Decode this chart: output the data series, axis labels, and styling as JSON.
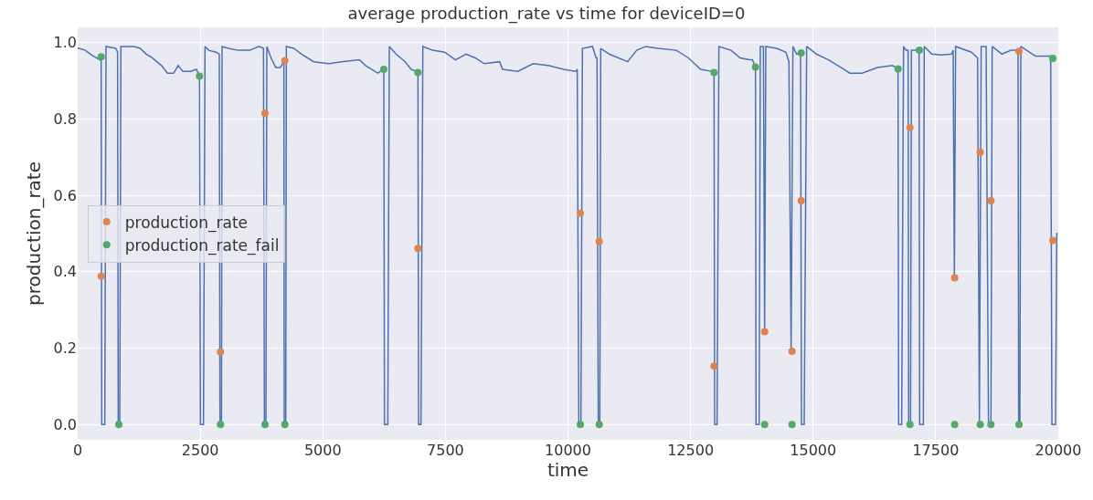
{
  "chart_data": {
    "type": "line",
    "title": "average production_rate vs time for deviceID=0",
    "xlabel": "time",
    "ylabel": "production_rate",
    "xlim": [
      0,
      20000
    ],
    "xticks": [
      0,
      2500,
      5000,
      7500,
      10000,
      12500,
      15000,
      17500,
      20000
    ],
    "ylim": [
      -0.04,
      1.04
    ],
    "yticks": [
      {
        "value": 0,
        "label": "0.0"
      },
      {
        "value": 0.2,
        "label": "0.2"
      },
      {
        "value": 0.4,
        "label": "0.4"
      },
      {
        "value": 0.6,
        "label": "0.6"
      },
      {
        "value": 0.8,
        "label": "0.8"
      },
      {
        "value": 1,
        "label": "1.0"
      }
    ],
    "grid": true,
    "legend": "left",
    "series": [
      {
        "color": "#4c72b0",
        "marker": "none",
        "x": [
          0,
          31,
          156,
          280,
          454,
          479,
          491,
          553,
          578,
          777,
          814,
          827,
          858,
          882,
          994,
          1150,
          1274,
          1398,
          1522,
          1709,
          1833,
          1957,
          2050,
          2144,
          2299,
          2423,
          2485,
          2504,
          2566,
          2597,
          2672,
          2827,
          2889,
          2902,
          2933,
          2945,
          3076,
          3262,
          3510,
          3697,
          3790,
          3809,
          3840,
          3858,
          3945,
          4039,
          4132,
          4206,
          4213,
          4244,
          4256,
          4411,
          4567,
          4815,
          5126,
          5375,
          5747,
          5872,
          6120,
          6232,
          6244,
          6257,
          6325,
          6356,
          6493,
          6679,
          6803,
          6897,
          6940,
          6953,
          7002,
          7040,
          7238,
          7487,
          7704,
          7922,
          8108,
          8294,
          8605,
          8667,
          8978,
          9289,
          9599,
          9910,
          10158,
          10189,
          10221,
          10264,
          10295,
          10500,
          10575,
          10593,
          10618,
          10649,
          10668,
          10842,
          11215,
          11401,
          11587,
          11836,
          12209,
          12457,
          12706,
          12923,
          12979,
          12992,
          13041,
          13078,
          13327,
          13513,
          13700,
          13762,
          13824,
          13836,
          13899,
          13923,
          13986,
          14011,
          14035,
          14259,
          14445,
          14507,
          14551,
          14588,
          14663,
          14744,
          14762,
          14818,
          14868,
          15067,
          15315,
          15564,
          15750,
          15999,
          16309,
          16620,
          16732,
          16744,
          16806,
          16844,
          16894,
          16937,
          16949,
          16987,
          17005,
          17111,
          17161,
          17173,
          17248,
          17266,
          17422,
          17608,
          17825,
          17856,
          17881,
          17906,
          18229,
          18354,
          18391,
          18428,
          18528,
          18577,
          18627,
          18652,
          18851,
          19037,
          19180,
          19192,
          19217,
          19236,
          19410,
          19534,
          19845,
          19870,
          19944,
          19969,
          19990
        ],
        "values": [
          0.985,
          0.985,
          0.98,
          0.968,
          0.955,
          0.963,
          0,
          0,
          0.99,
          0.985,
          0.975,
          0,
          0,
          0.99,
          0.99,
          0.99,
          0.985,
          0.97,
          0.96,
          0.94,
          0.92,
          0.92,
          0.94,
          0.925,
          0.925,
          0.93,
          0.912,
          0,
          0,
          0.99,
          0.98,
          0.975,
          0.97,
          0,
          0,
          0.99,
          0.985,
          0.98,
          0.98,
          0.99,
          0.985,
          0,
          0,
          0.99,
          0.96,
          0.935,
          0.935,
          0.95,
          0,
          0,
          0.99,
          0.985,
          0.97,
          0.95,
          0.945,
          0.95,
          0.955,
          0.94,
          0.92,
          0.93,
          0.93,
          0,
          0,
          0.99,
          0.97,
          0.95,
          0.93,
          0.925,
          0.922,
          0,
          0,
          0.99,
          0.98,
          0.975,
          0.955,
          0.97,
          0.96,
          0.945,
          0.95,
          0.93,
          0.925,
          0.945,
          0.94,
          0.93,
          0.925,
          0.93,
          0,
          0,
          0.985,
          0.99,
          0.96,
          0.96,
          0,
          0,
          0.985,
          0.97,
          0.95,
          0.98,
          0.99,
          0.985,
          0.98,
          0.96,
          0.93,
          0.925,
          0.922,
          0,
          0,
          0.99,
          0.98,
          0.96,
          0.955,
          0.955,
          0.936,
          0,
          0,
          0.99,
          0.99,
          0.243,
          0.99,
          0.985,
          0.975,
          0.95,
          0.192,
          0.99,
          0.97,
          0.973,
          0,
          0,
          0.99,
          0.97,
          0.955,
          0.935,
          0.92,
          0.92,
          0.935,
          0.94,
          0.931,
          0,
          0,
          0.99,
          0.98,
          0.98,
          0,
          0,
          0.98,
          0.98,
          0.98,
          0,
          0,
          0.99,
          0.97,
          0.968,
          0.97,
          0.98,
          0.384,
          0.99,
          0.975,
          0.96,
          0,
          0.99,
          0.99,
          0,
          0,
          0.99,
          0.97,
          0.98,
          0.98,
          0,
          0,
          0.99,
          0.975,
          0.965,
          0.965,
          0,
          0,
          0.5,
          0.5
        ]
      },
      {
        "type": "scatter",
        "name": "production_rate",
        "color": "#dd8452",
        "marker": "circle",
        "x": [
          479,
          2913,
          3821,
          4225,
          6940,
          10252,
          10637,
          12979,
          14011,
          14570,
          14757,
          16975,
          17887,
          18409,
          18627,
          19199,
          19888
        ],
        "values": [
          0.388,
          0.19,
          0.815,
          0.953,
          0.461,
          0.553,
          0.479,
          0.153,
          0.243,
          0.192,
          0.586,
          0.778,
          0.384,
          0.713,
          0.586,
          0.977,
          0.482
        ]
      },
      {
        "type": "scatter",
        "name": "production_rate_fail",
        "color": "#55a868",
        "marker": "circle",
        "x": [
          479,
          839,
          2485,
          2913,
          3821,
          4225,
          6244,
          6940,
          10252,
          10637,
          12979,
          13825,
          14011,
          14570,
          14757,
          16733,
          16975,
          17167,
          17887,
          18409,
          18627,
          19199,
          19888
        ],
        "values": [
          0.963,
          0,
          0.912,
          0,
          0,
          0,
          0.93,
          0.922,
          0,
          0,
          0.922,
          0.936,
          0,
          0,
          0.973,
          0.931,
          0,
          0.98,
          0,
          0,
          0,
          0,
          0.959
        ]
      }
    ]
  }
}
